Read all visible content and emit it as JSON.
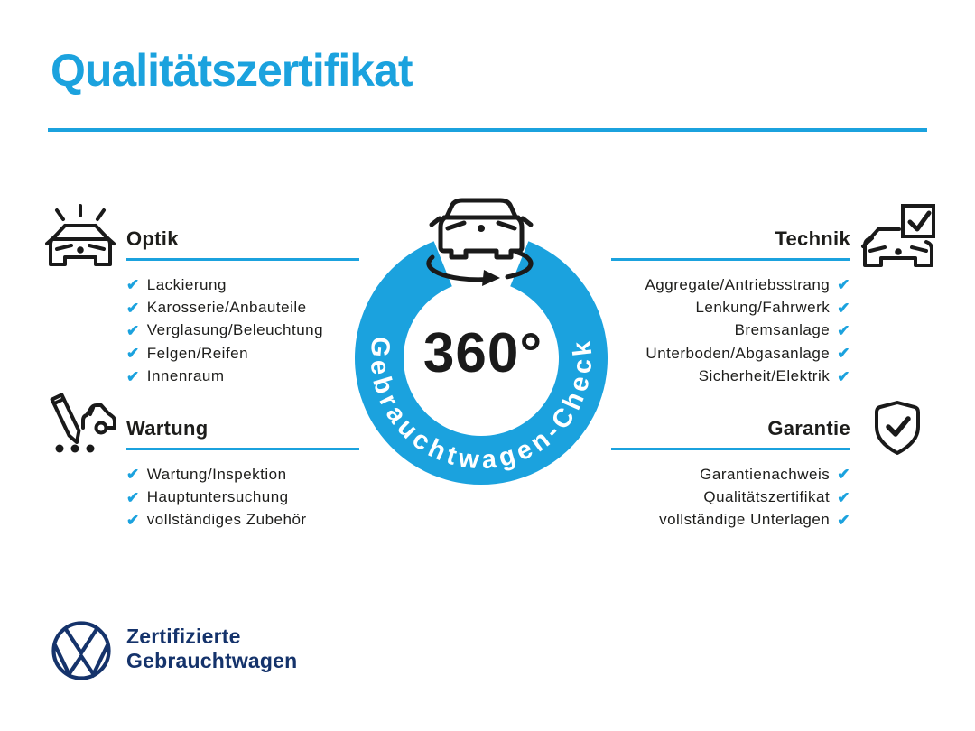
{
  "title": "Qualitätszertifikat",
  "colors": {
    "accent_blue": "#1BA2DE",
    "brand_navy": "#15336B",
    "text_dark": "#1D1D1B"
  },
  "check_glyph": "✔",
  "center": {
    "degree_label": "360°",
    "ring_label": "Gebrauchtwagen-Check",
    "icon": "car-rotation-icon"
  },
  "sections": {
    "optik": {
      "title": "Optik",
      "icon": "car-headlights-icon",
      "items": [
        "Lackierung",
        "Karosserie/Anbauteile",
        "Verglasung/Beleuchtung",
        "Felgen/Reifen",
        "Innenraum"
      ]
    },
    "wartung": {
      "title": "Wartung",
      "icon": "pencil-car-icon",
      "items": [
        "Wartung/Inspektion",
        "Hauptuntersuchung",
        "vollständiges Zubehör"
      ]
    },
    "technik": {
      "title": "Technik",
      "icon": "car-checkbox-icon",
      "items": [
        "Aggregate/Antriebsstrang",
        "Lenkung/Fahrwerk",
        "Bremsanlage",
        "Unterboden/Abgasanlage",
        "Sicherheit/Elektrik"
      ]
    },
    "garantie": {
      "title": "Garantie",
      "icon": "shield-check-icon",
      "items": [
        "Garantienachweis",
        "Qualitätszertifikat",
        "vollständige Unterlagen"
      ]
    }
  },
  "footer": {
    "logo": "vw-logo",
    "line1": "Zertifizierte",
    "line2": "Gebrauchtwagen"
  }
}
